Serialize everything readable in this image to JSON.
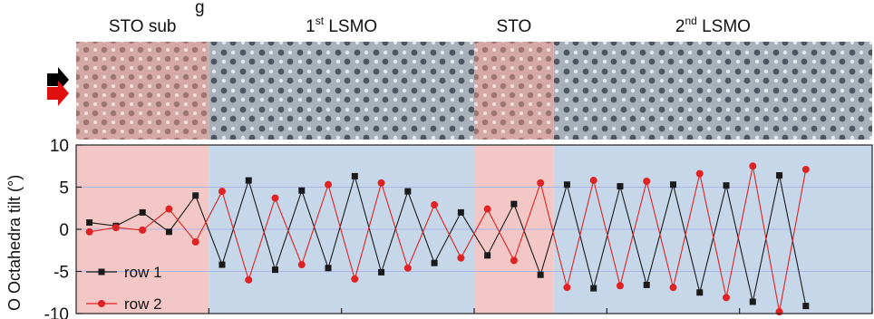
{
  "header_text": "g",
  "regions": [
    {
      "name": "STO sub",
      "sup": "",
      "rest": "",
      "x_start": 0.5,
      "x_end": 5.5,
      "color": "#f2c7c5"
    },
    {
      "name": "1",
      "sup": "st",
      "rest": " LSMO",
      "x_start": 5.5,
      "x_end": 15.5,
      "color": "#c5d7e8"
    },
    {
      "name": "STO",
      "sup": "",
      "rest": "",
      "x_start": 15.5,
      "x_end": 18.5,
      "color": "#f2c7c5"
    },
    {
      "name": "2",
      "sup": "nd",
      "rest": " LSMO",
      "x_start": 18.5,
      "x_end": 30.5,
      "color": "#c5d7e8"
    }
  ],
  "chart_data": {
    "type": "line",
    "title": "",
    "xlabel": "",
    "ylabel": "O Octahedra tilt (°)",
    "ylim": [
      -10,
      10
    ],
    "yticks": [
      -10,
      -5,
      0,
      5,
      10
    ],
    "grid": "horizontal",
    "legend_position": "bottom-left",
    "series": [
      {
        "name": "row 1",
        "color": "#1a1a1a",
        "marker": "square",
        "points": [
          [
            1,
            0.8
          ],
          [
            2,
            0.4
          ],
          [
            3,
            2.0
          ],
          [
            4,
            -0.3
          ],
          [
            5,
            4.0
          ],
          [
            6,
            -4.2
          ],
          [
            7,
            5.8
          ],
          [
            8,
            -4.8
          ],
          [
            9,
            4.6
          ],
          [
            10,
            -4.6
          ],
          [
            11,
            6.3
          ],
          [
            12,
            -5.1
          ],
          [
            13,
            4.5
          ],
          [
            14,
            -4.0
          ],
          [
            15,
            2.0
          ],
          [
            16,
            -3.1
          ],
          [
            17,
            3.0
          ],
          [
            18,
            -5.4
          ],
          [
            19,
            5.3
          ],
          [
            20,
            -7.0
          ],
          [
            21,
            5.1
          ],
          [
            22,
            -6.6
          ],
          [
            23,
            5.3
          ],
          [
            24,
            -7.5
          ],
          [
            25,
            5.2
          ],
          [
            26,
            -8.6
          ],
          [
            27,
            6.4
          ],
          [
            28,
            -9.1
          ]
        ]
      },
      {
        "name": "row 2",
        "color": "#e02222",
        "marker": "circle",
        "points": [
          [
            1,
            -0.3
          ],
          [
            2,
            0.2
          ],
          [
            3,
            -0.1
          ],
          [
            4,
            2.4
          ],
          [
            5,
            -1.5
          ],
          [
            6,
            4.5
          ],
          [
            7,
            -6.0
          ],
          [
            8,
            3.7
          ],
          [
            9,
            -4.2
          ],
          [
            10,
            5.3
          ],
          [
            11,
            -5.9
          ],
          [
            12,
            5.5
          ],
          [
            13,
            -4.6
          ],
          [
            14,
            2.9
          ],
          [
            15,
            -3.4
          ],
          [
            16,
            2.4
          ],
          [
            17,
            -3.7
          ],
          [
            18,
            5.5
          ],
          [
            19,
            -6.9
          ],
          [
            20,
            5.8
          ],
          [
            21,
            -6.7
          ],
          [
            22,
            5.7
          ],
          [
            23,
            -6.9
          ],
          [
            24,
            6.6
          ],
          [
            25,
            -8.1
          ],
          [
            26,
            7.5
          ],
          [
            27,
            -9.8
          ],
          [
            28,
            7.1
          ]
        ]
      }
    ]
  }
}
